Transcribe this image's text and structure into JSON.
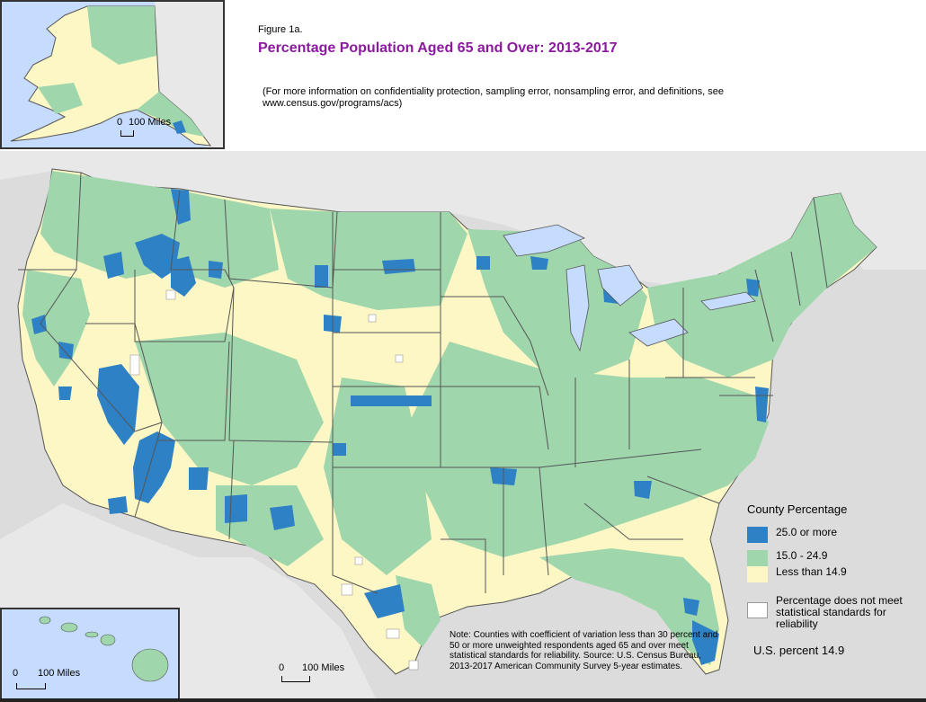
{
  "figure_label": "Figure 1a.",
  "title": "Percentage Population Aged 65 and Over: 2013-2017",
  "subtitle": "(For more information on confidentiality protection, sampling error, nonsampling error, and definitions, see www.census.gov/programs/acs)",
  "alaska": {
    "scale_start": "0",
    "scale_end": "100 Miles"
  },
  "hawaii": {
    "scale_start": "0",
    "scale_end": "100 Miles"
  },
  "main_scale": {
    "scale_start": "0",
    "scale_end": "100 Miles"
  },
  "legend": {
    "title": "County Percentage",
    "items": [
      {
        "label": "25.0 or more",
        "color": "#2e81c4"
      },
      {
        "label": "15.0 - 24.9",
        "color": "#9fd6ab"
      },
      {
        "label": "Less than 14.9",
        "color": "#fdf7c6"
      },
      {
        "label": "Percentage does not meet statistical standards for reliability",
        "color": "#ffffff"
      }
    ]
  },
  "us_percent": "U.S. percent 14.9",
  "note": "Note: Counties with coefficient of variation less than 30 percent and 50 or more unweighted respondents aged 65 and over meet statistical standards for reliability. Source: U.S. Census Bureau, 2013-2017 American Community Survey 5-year estimates.",
  "map_colors": {
    "water": "#c6dcff",
    "ocean": "#dcdcdc",
    "state_border": "#555555",
    "county_border": "#ffffff"
  }
}
